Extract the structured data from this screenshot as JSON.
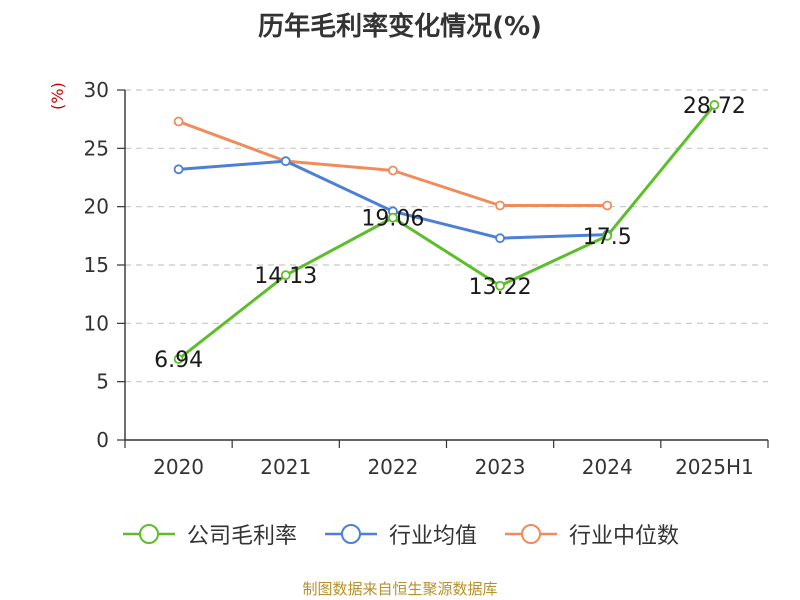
{
  "chart_data": {
    "type": "line",
    "title": "历年毛利率变化情况(%)",
    "ylabel": "(%)",
    "categories": [
      "2020",
      "2021",
      "2022",
      "2023",
      "2024",
      "2025H1"
    ],
    "ylim": [
      0,
      30
    ],
    "yticks": [
      0,
      5,
      10,
      15,
      20,
      25,
      30
    ],
    "grid": true,
    "legend_position": "bottom",
    "series": [
      {
        "name": "公司毛利率",
        "color": "#5cbf2a",
        "values": [
          6.94,
          14.13,
          19.06,
          13.22,
          17.5,
          28.72
        ],
        "data_labels": [
          "6.94",
          "14.13",
          "19.06",
          "13.22",
          "17.5",
          "28.72"
        ]
      },
      {
        "name": "行业均值",
        "color": "#4c80d8",
        "values": [
          23.2,
          23.9,
          19.6,
          17.3,
          17.6,
          null
        ]
      },
      {
        "name": "行业中位数",
        "color": "#f08c5a",
        "values": [
          27.3,
          23.9,
          23.1,
          20.1,
          20.1,
          null
        ]
      }
    ]
  },
  "footer": {
    "source": "制图数据来自恒生聚源数据库"
  }
}
